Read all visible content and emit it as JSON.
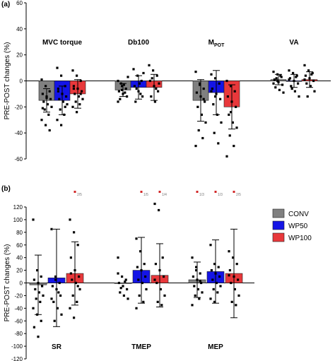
{
  "colors": {
    "CONV": "#808080",
    "WP50": "#1414e6",
    "WP100": "#e8383b",
    "sig": "#d22828"
  },
  "legend": [
    "CONV",
    "WP50",
    "WP100"
  ],
  "chart_data": [
    {
      "panel": "(a)",
      "type": "bar",
      "ylabel": "PRE-POST changes (%)",
      "ylim": [
        -60,
        60
      ],
      "yticks": [
        -60,
        -40,
        -20,
        0,
        20,
        40,
        60
      ],
      "categories": [
        "MVC torque",
        "Db100",
        "M",
        "VA"
      ],
      "category_subscripts": [
        "",
        "",
        "POT",
        ""
      ],
      "series": [
        {
          "name": "CONV",
          "values": [
            -15,
            -7,
            -15,
            1
          ],
          "sd": [
            9,
            5,
            16,
            4
          ],
          "points": [
            [
              1,
              -4,
              -8,
              -10,
              -12,
              -14,
              -16,
              -18,
              -20,
              -22,
              -26,
              -30,
              -34,
              -38,
              -21,
              -13
            ],
            [
              0,
              -4,
              -6,
              -8,
              -10,
              -12,
              -14,
              -3,
              3,
              -2,
              -9,
              -16,
              -7
            ],
            [
              7,
              -2,
              -6,
              -9,
              -12,
              -16,
              -20,
              -26,
              -32,
              -38,
              -44,
              -50,
              -3,
              -14
            ],
            [
              7,
              5,
              3,
              1,
              -1,
              -3,
              -5,
              -7,
              -9,
              2,
              4,
              -2,
              0
            ]
          ]
        },
        {
          "name": "WP50",
          "values": [
            -15,
            -5,
            -9,
            0
          ],
          "sd": [
            11,
            9,
            17,
            5
          ],
          "points": [
            [
              10,
              4,
              -4,
              -8,
              -10,
              -12,
              -14,
              -16,
              -18,
              -22,
              -26,
              -30,
              -34,
              -20,
              -6
            ],
            [
              9,
              4,
              0,
              -4,
              -8,
              -12,
              -16,
              -2,
              6,
              -6,
              -10
            ],
            [
              5,
              2,
              -2,
              -6,
              -10,
              -14,
              -18,
              -26,
              -32,
              -40,
              -48,
              -8,
              -12
            ],
            [
              8,
              6,
              4,
              2,
              0,
              -2,
              -4,
              -8,
              -12,
              -6,
              3,
              1
            ]
          ]
        },
        {
          "name": "WP100",
          "values": [
            -10,
            -5,
            -20,
            1
          ],
          "sd": [
            11,
            10,
            17,
            6
          ],
          "points": [
            [
              8,
              4,
              0,
              -4,
              -6,
              -8,
              -10,
              -12,
              -14,
              -16,
              -18,
              -20,
              -24,
              -10,
              -6
            ],
            [
              12,
              8,
              4,
              0,
              -4,
              -8,
              -12,
              -16,
              -2,
              2,
              -6
            ],
            [
              0,
              -4,
              -8,
              -12,
              -16,
              -20,
              -26,
              -32,
              -36,
              -42,
              -50,
              -58,
              -24
            ],
            [
              12,
              8,
              6,
              4,
              2,
              0,
              -2,
              -4,
              -8,
              -12,
              5,
              1
            ]
          ]
        }
      ]
    },
    {
      "panel": "(b)",
      "type": "bar",
      "ylabel": "PRE-POST changes (%)",
      "ylim": [
        -120,
        120
      ],
      "yticks": [
        -120,
        -100,
        -80,
        -60,
        -40,
        -20,
        0,
        20,
        40,
        60,
        80,
        100,
        120
      ],
      "categories": [
        "SR",
        "TMEP",
        "MEP"
      ],
      "series": [
        {
          "name": "CONV",
          "values": [
            -3,
            0,
            5
          ],
          "sd": [
            47,
            0,
            28
          ],
          "points": [
            [
              100,
              20,
              10,
              5,
              0,
              -5,
              -10,
              -15,
              -20,
              -25,
              -30,
              -40,
              -50,
              -60,
              -70,
              -85
            ],
            [
              40,
              10,
              5,
              0,
              -5,
              -10,
              -15,
              -20,
              -25,
              -8,
              2,
              15
            ],
            [
              40,
              25,
              15,
              10,
              5,
              0,
              -5,
              -10,
              -15,
              -20,
              -25,
              -35,
              20,
              3
            ]
          ]
        },
        {
          "name": "WP50",
          "values": [
            8,
            20,
            18
          ],
          "sd": [
            77,
            52,
            50
          ],
          "points": [
            [
              85,
              10,
              0,
              -5,
              -10,
              -20,
              -30,
              -40,
              -50,
              -60,
              -15,
              -25,
              5
            ],
            [
              70,
              50,
              30,
              25,
              20,
              10,
              5,
              0,
              -10,
              -20,
              -30,
              -40
            ],
            [
              60,
              30,
              25,
              20,
              15,
              10,
              5,
              0,
              -5,
              -10,
              -15,
              -25,
              -30
            ]
          ]
        },
        {
          "name": "WP100",
          "values": [
            15,
            12,
            15
          ],
          "sd": [
            50,
            50,
            70
          ],
          "points": [
            [
              100,
              80,
              60,
              40,
              20,
              10,
              5,
              0,
              -10,
              -20,
              -30,
              -40,
              -55,
              -5,
              15
            ],
            [
              125,
              115,
              40,
              30,
              20,
              10,
              0,
              -10,
              -20,
              -30,
              -35,
              5
            ],
            [
              50,
              40,
              30,
              20,
              10,
              5,
              0,
              -10,
              -20,
              -30,
              -35,
              12
            ]
          ]
        }
      ]
    }
  ],
  "significance": [
    {
      "category": "SR",
      "group": "WP100",
      "text": "2/5"
    },
    {
      "category": "TMEP",
      "group": "WP50",
      "text": "1/5"
    },
    {
      "category": "TMEP",
      "group": "WP100",
      "text": "1/4"
    },
    {
      "category": "MEP",
      "group": "CONV",
      "text": "1/3"
    },
    {
      "category": "MEP",
      "group": "WP50",
      "text": "1/3"
    },
    {
      "category": "MEP",
      "group": "WP100",
      "text": "2/5"
    }
  ]
}
